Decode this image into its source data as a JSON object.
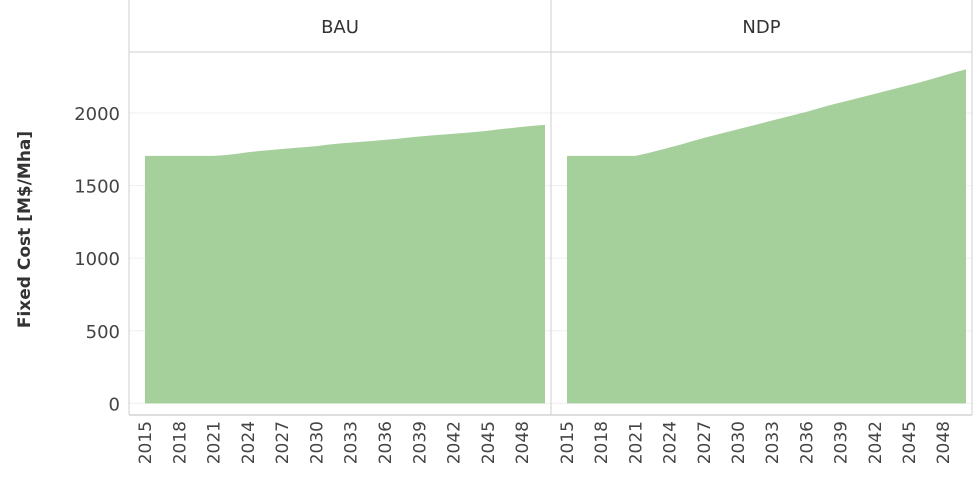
{
  "chart_data": {
    "type": "area",
    "facet_titles": [
      "BAU",
      "NDP"
    ],
    "ylabel": "Fixed Cost [M$/Mha]",
    "xlabel": "",
    "ylim": [
      -80,
      2420
    ],
    "yticks": [
      0,
      500,
      1000,
      1500,
      2000
    ],
    "xticks": [
      2015,
      2018,
      2021,
      2024,
      2027,
      2030,
      2033,
      2036,
      2039,
      2042,
      2045,
      2048
    ],
    "x": [
      2015,
      2016,
      2017,
      2018,
      2019,
      2020,
      2021,
      2022,
      2023,
      2024,
      2025,
      2026,
      2027,
      2028,
      2029,
      2030,
      2031,
      2032,
      2033,
      2034,
      2035,
      2036,
      2037,
      2038,
      2039,
      2040,
      2041,
      2042,
      2043,
      2044,
      2045,
      2046,
      2047,
      2048,
      2049,
      2050
    ],
    "series": [
      {
        "facet": "BAU",
        "values": [
          1705,
          1705,
          1705,
          1705,
          1705,
          1705,
          1705,
          1710,
          1718,
          1730,
          1738,
          1745,
          1752,
          1759,
          1765,
          1772,
          1782,
          1790,
          1796,
          1802,
          1808,
          1815,
          1822,
          1830,
          1838,
          1845,
          1851,
          1857,
          1863,
          1870,
          1878,
          1888,
          1896,
          1904,
          1912,
          1918
        ]
      },
      {
        "facet": "NDP",
        "values": [
          1705,
          1705,
          1705,
          1705,
          1705,
          1705,
          1705,
          1722,
          1742,
          1762,
          1783,
          1806,
          1828,
          1848,
          1868,
          1888,
          1908,
          1928,
          1948,
          1968,
          1988,
          2008,
          2030,
          2052,
          2072,
          2092,
          2112,
          2132,
          2152,
          2172,
          2192,
          2212,
          2234,
          2256,
          2280,
          2300
        ]
      }
    ],
    "fill_color": "#a6d09b",
    "grid": true
  }
}
